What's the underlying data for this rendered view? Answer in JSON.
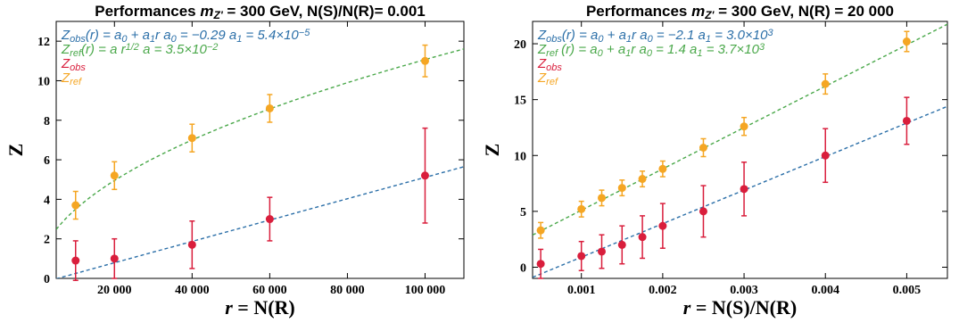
{
  "chart_data": [
    {
      "type": "scatter",
      "title_prefix": "Performances ",
      "title_m": "m",
      "title_sub": "Z'",
      "title_suffix": " = 300 GeV, N(S)/N(R)= 0.001",
      "xlabel_var": "r",
      "xlabel_rest": " = N(R)",
      "ylabel": "Z",
      "xlim": [
        5000,
        110000
      ],
      "ylim": [
        0,
        13
      ],
      "xticks": [
        {
          "v": 20000,
          "label": "20 000"
        },
        {
          "v": 40000,
          "label": "40 000"
        },
        {
          "v": 60000,
          "label": "60 000"
        },
        {
          "v": 80000,
          "label": "80 000"
        },
        {
          "v": 100000,
          "label": "100 000"
        }
      ],
      "yticks": [
        {
          "v": 0,
          "label": "0"
        },
        {
          "v": 2,
          "label": "2"
        },
        {
          "v": 4,
          "label": "4"
        },
        {
          "v": 6,
          "label": "6"
        },
        {
          "v": 8,
          "label": "8"
        },
        {
          "v": 10,
          "label": "10"
        },
        {
          "v": 12,
          "label": "12"
        }
      ],
      "grid": false,
      "legend_position": "top-left",
      "series": [
        {
          "key": "obs",
          "color": "#d91e3c",
          "x": [
            10000,
            20000,
            40000,
            60000,
            100000
          ],
          "y": [
            0.9,
            1.0,
            1.7,
            3.0,
            5.2
          ],
          "err": [
            1.0,
            1.0,
            1.2,
            1.1,
            2.4
          ]
        },
        {
          "key": "ref",
          "color": "#f5a623",
          "x": [
            10000,
            20000,
            40000,
            60000,
            100000
          ],
          "y": [
            3.7,
            5.2,
            7.1,
            8.6,
            11.0
          ],
          "err": [
            0.7,
            0.7,
            0.7,
            0.7,
            0.8
          ]
        }
      ],
      "fits": [
        {
          "key": "obs_fit",
          "color": "#2b6fa8",
          "form": "linear",
          "a0": -0.29,
          "a1": 5.4e-05
        },
        {
          "key": "ref_fit",
          "color": "#4aa84a",
          "form": "sqrt",
          "a": 0.035
        }
      ],
      "legend": [
        {
          "color": "#2b6fa8",
          "text": "Zobs(r) = a0 + a1r   a0 = −0.29   a1 = 5.4×10−5"
        },
        {
          "color": "#4aa84a",
          "text": "Zref(r) = a r1/2        a = 3.5×10−2"
        },
        {
          "color": "#d91e3c",
          "text": "Zobs"
        },
        {
          "color": "#f5a623",
          "text": "Zref"
        }
      ]
    },
    {
      "type": "scatter",
      "title_prefix": "Performances ",
      "title_m": "m",
      "title_sub": "Z'",
      "title_suffix": " = 300 GeV, N(R) = 20 000",
      "xlabel_var": "r",
      "xlabel_rest": " = N(S)/N(R)",
      "ylabel": "Z",
      "xlim": [
        0.0004,
        0.0055
      ],
      "ylim": [
        -1,
        22
      ],
      "xticks": [
        {
          "v": 0.001,
          "label": "0.001"
        },
        {
          "v": 0.002,
          "label": "0.002"
        },
        {
          "v": 0.003,
          "label": "0.003"
        },
        {
          "v": 0.004,
          "label": "0.004"
        },
        {
          "v": 0.005,
          "label": "0.005"
        }
      ],
      "yticks": [
        {
          "v": 0,
          "label": "0"
        },
        {
          "v": 5,
          "label": "5"
        },
        {
          "v": 10,
          "label": "10"
        },
        {
          "v": 15,
          "label": "15"
        },
        {
          "v": 20,
          "label": "20"
        }
      ],
      "grid": false,
      "legend_position": "top-left",
      "series": [
        {
          "key": "obs",
          "color": "#d91e3c",
          "x": [
            0.0005,
            0.001,
            0.00125,
            0.0015,
            0.00175,
            0.002,
            0.0025,
            0.003,
            0.004,
            0.005
          ],
          "y": [
            0.3,
            1.0,
            1.4,
            2.0,
            2.7,
            3.7,
            5.0,
            7.0,
            10.0,
            13.1
          ],
          "err": [
            1.3,
            1.3,
            1.5,
            1.7,
            1.9,
            2.0,
            2.3,
            2.4,
            2.4,
            2.1
          ]
        },
        {
          "key": "ref",
          "color": "#f5a623",
          "x": [
            0.0005,
            0.001,
            0.00125,
            0.0015,
            0.00175,
            0.002,
            0.0025,
            0.003,
            0.004,
            0.005
          ],
          "y": [
            3.3,
            5.2,
            6.2,
            7.1,
            7.9,
            8.8,
            10.7,
            12.6,
            16.4,
            20.2
          ],
          "err": [
            0.7,
            0.7,
            0.7,
            0.7,
            0.7,
            0.7,
            0.8,
            0.8,
            0.9,
            0.9
          ]
        }
      ],
      "fits": [
        {
          "key": "obs_fit",
          "color": "#2b6fa8",
          "form": "linear",
          "a0": -2.1,
          "a1": 3000
        },
        {
          "key": "ref_fit",
          "color": "#4aa84a",
          "form": "linear",
          "a0": 1.4,
          "a1": 3700
        }
      ],
      "legend": [
        {
          "color": "#2b6fa8",
          "text": "Zobs(r) = a0 + a1r   a0 = −2.1   a1 = 3.0×103"
        },
        {
          "color": "#4aa84a",
          "text": "Zref (r) = a0 + a1r   a0 = 1.4   a1 = 3.7×103"
        },
        {
          "color": "#d91e3c",
          "text": "Zobs"
        },
        {
          "color": "#f5a623",
          "text": "Zref"
        }
      ]
    }
  ]
}
